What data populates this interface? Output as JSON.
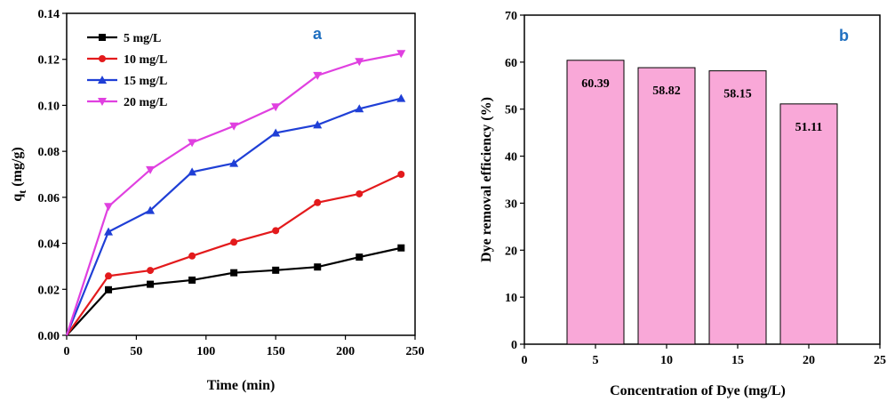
{
  "chart_data": [
    {
      "type": "line",
      "panel_label": "a",
      "xlabel": "Time (min)",
      "ylabel_main": "q",
      "ylabel_sub": "t",
      "ylabel_unit": " (mg/g)",
      "xlim": [
        0,
        250
      ],
      "ylim": [
        0,
        0.14
      ],
      "xticks": [
        "0",
        "50",
        "100",
        "150",
        "200",
        "250"
      ],
      "yticks": [
        "0.00",
        "0.02",
        "0.04",
        "0.06",
        "0.08",
        "0.10",
        "0.12",
        "0.14"
      ],
      "legend_position": "top-left",
      "x": [
        0,
        30,
        60,
        90,
        120,
        150,
        180,
        210,
        240
      ],
      "series": [
        {
          "name": "5 mg/L",
          "color": "#000000",
          "marker": "square",
          "values": [
            0,
            0.0198,
            0.0222,
            0.024,
            0.0272,
            0.0283,
            0.0297,
            0.034,
            0.038
          ]
        },
        {
          "name": "10 mg/L",
          "color": "#e31a1c",
          "marker": "circle",
          "values": [
            0,
            0.0258,
            0.0282,
            0.0345,
            0.0405,
            0.0455,
            0.0577,
            0.0615,
            0.07
          ]
        },
        {
          "name": "15 mg/L",
          "color": "#1f3fd6",
          "marker": "triangle-up",
          "values": [
            0,
            0.045,
            0.0543,
            0.071,
            0.0748,
            0.088,
            0.0915,
            0.0985,
            0.103
          ]
        },
        {
          "name": "20 mg/L",
          "color": "#e040e0",
          "marker": "triangle-down",
          "values": [
            0,
            0.056,
            0.072,
            0.0838,
            0.091,
            0.0993,
            0.113,
            0.119,
            0.1225
          ]
        }
      ]
    },
    {
      "type": "bar",
      "panel_label": "b",
      "xlabel": "Concentration of Dye (mg/L)",
      "ylabel": "Dye removal efficiency (%)",
      "xlim": [
        0,
        25
      ],
      "ylim": [
        0,
        70
      ],
      "xticks": [
        "0",
        "5",
        "10",
        "15",
        "20",
        "25"
      ],
      "yticks": [
        "0",
        "10",
        "20",
        "30",
        "40",
        "50",
        "60",
        "70"
      ],
      "bar_color": "#f9a8d8",
      "categories": [
        "5",
        "10",
        "15",
        "20"
      ],
      "values": [
        60.39,
        58.82,
        58.15,
        51.11
      ],
      "data_labels": [
        "60.39",
        "58.82",
        "58.15",
        "51.11"
      ]
    }
  ]
}
